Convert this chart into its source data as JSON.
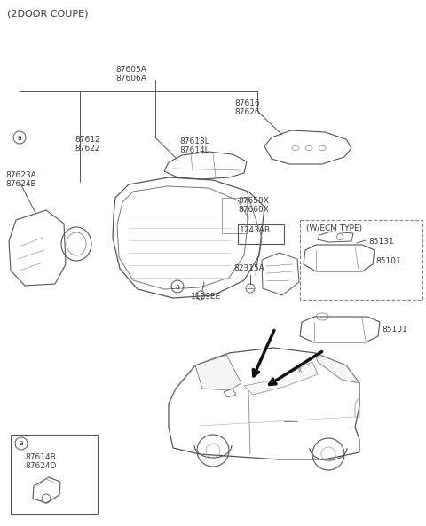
{
  "title": "(2DOOR COUPE)",
  "bg_color": "#ffffff",
  "text_color": "#3a3a3a",
  "line_color": "#555555",
  "parts": {
    "header": "87605A\n87606A",
    "p87616": "87616\n87626",
    "p87612": "87612\n87622",
    "p87613": "87613L\n87614L",
    "p87623": "87623A\n87624B",
    "p87650": "87650X\n87660X",
    "p1243": "1243AB",
    "p82315": "82315A",
    "p1129": "1129EE",
    "p85131": "85131",
    "p85101a": "85101",
    "p85101b": "85101",
    "p87614b": "87614B\n87624D",
    "w_ecm": "(W/ECM TYPE)"
  },
  "figsize": [
    4.8,
    5.93
  ],
  "dpi": 100
}
